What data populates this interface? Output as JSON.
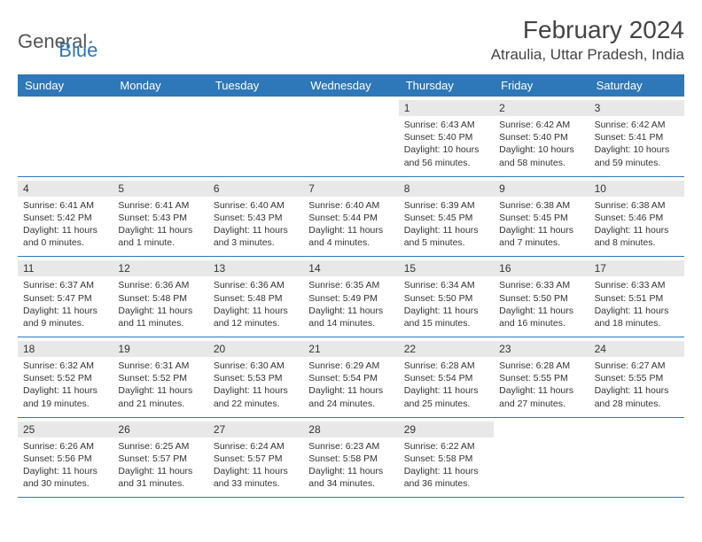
{
  "logo": {
    "text1": "General",
    "text2": "Blue"
  },
  "title": "February 2024",
  "location": "Atraulia, Uttar Pradesh, India",
  "colors": {
    "header_bg": "#2e77b8",
    "header_text": "#ffffff",
    "daynum_bg": "#e8e8e8",
    "border": "#2e77b8",
    "text": "#333333",
    "background": "#ffffff"
  },
  "typography": {
    "title_fontsize": 28,
    "location_fontsize": 17,
    "header_fontsize": 13,
    "daynum_fontsize": 12,
    "detail_fontsize": 10.5
  },
  "weekdays": [
    "Sunday",
    "Monday",
    "Tuesday",
    "Wednesday",
    "Thursday",
    "Friday",
    "Saturday"
  ],
  "weeks": [
    [
      null,
      null,
      null,
      null,
      {
        "n": "1",
        "l1": "Sunrise: 6:43 AM",
        "l2": "Sunset: 5:40 PM",
        "l3": "Daylight: 10 hours",
        "l4": "and 56 minutes."
      },
      {
        "n": "2",
        "l1": "Sunrise: 6:42 AM",
        "l2": "Sunset: 5:40 PM",
        "l3": "Daylight: 10 hours",
        "l4": "and 58 minutes."
      },
      {
        "n": "3",
        "l1": "Sunrise: 6:42 AM",
        "l2": "Sunset: 5:41 PM",
        "l3": "Daylight: 10 hours",
        "l4": "and 59 minutes."
      }
    ],
    [
      {
        "n": "4",
        "l1": "Sunrise: 6:41 AM",
        "l2": "Sunset: 5:42 PM",
        "l3": "Daylight: 11 hours",
        "l4": "and 0 minutes."
      },
      {
        "n": "5",
        "l1": "Sunrise: 6:41 AM",
        "l2": "Sunset: 5:43 PM",
        "l3": "Daylight: 11 hours",
        "l4": "and 1 minute."
      },
      {
        "n": "6",
        "l1": "Sunrise: 6:40 AM",
        "l2": "Sunset: 5:43 PM",
        "l3": "Daylight: 11 hours",
        "l4": "and 3 minutes."
      },
      {
        "n": "7",
        "l1": "Sunrise: 6:40 AM",
        "l2": "Sunset: 5:44 PM",
        "l3": "Daylight: 11 hours",
        "l4": "and 4 minutes."
      },
      {
        "n": "8",
        "l1": "Sunrise: 6:39 AM",
        "l2": "Sunset: 5:45 PM",
        "l3": "Daylight: 11 hours",
        "l4": "and 5 minutes."
      },
      {
        "n": "9",
        "l1": "Sunrise: 6:38 AM",
        "l2": "Sunset: 5:45 PM",
        "l3": "Daylight: 11 hours",
        "l4": "and 7 minutes."
      },
      {
        "n": "10",
        "l1": "Sunrise: 6:38 AM",
        "l2": "Sunset: 5:46 PM",
        "l3": "Daylight: 11 hours",
        "l4": "and 8 minutes."
      }
    ],
    [
      {
        "n": "11",
        "l1": "Sunrise: 6:37 AM",
        "l2": "Sunset: 5:47 PM",
        "l3": "Daylight: 11 hours",
        "l4": "and 9 minutes."
      },
      {
        "n": "12",
        "l1": "Sunrise: 6:36 AM",
        "l2": "Sunset: 5:48 PM",
        "l3": "Daylight: 11 hours",
        "l4": "and 11 minutes."
      },
      {
        "n": "13",
        "l1": "Sunrise: 6:36 AM",
        "l2": "Sunset: 5:48 PM",
        "l3": "Daylight: 11 hours",
        "l4": "and 12 minutes."
      },
      {
        "n": "14",
        "l1": "Sunrise: 6:35 AM",
        "l2": "Sunset: 5:49 PM",
        "l3": "Daylight: 11 hours",
        "l4": "and 14 minutes."
      },
      {
        "n": "15",
        "l1": "Sunrise: 6:34 AM",
        "l2": "Sunset: 5:50 PM",
        "l3": "Daylight: 11 hours",
        "l4": "and 15 minutes."
      },
      {
        "n": "16",
        "l1": "Sunrise: 6:33 AM",
        "l2": "Sunset: 5:50 PM",
        "l3": "Daylight: 11 hours",
        "l4": "and 16 minutes."
      },
      {
        "n": "17",
        "l1": "Sunrise: 6:33 AM",
        "l2": "Sunset: 5:51 PM",
        "l3": "Daylight: 11 hours",
        "l4": "and 18 minutes."
      }
    ],
    [
      {
        "n": "18",
        "l1": "Sunrise: 6:32 AM",
        "l2": "Sunset: 5:52 PM",
        "l3": "Daylight: 11 hours",
        "l4": "and 19 minutes."
      },
      {
        "n": "19",
        "l1": "Sunrise: 6:31 AM",
        "l2": "Sunset: 5:52 PM",
        "l3": "Daylight: 11 hours",
        "l4": "and 21 minutes."
      },
      {
        "n": "20",
        "l1": "Sunrise: 6:30 AM",
        "l2": "Sunset: 5:53 PM",
        "l3": "Daylight: 11 hours",
        "l4": "and 22 minutes."
      },
      {
        "n": "21",
        "l1": "Sunrise: 6:29 AM",
        "l2": "Sunset: 5:54 PM",
        "l3": "Daylight: 11 hours",
        "l4": "and 24 minutes."
      },
      {
        "n": "22",
        "l1": "Sunrise: 6:28 AM",
        "l2": "Sunset: 5:54 PM",
        "l3": "Daylight: 11 hours",
        "l4": "and 25 minutes."
      },
      {
        "n": "23",
        "l1": "Sunrise: 6:28 AM",
        "l2": "Sunset: 5:55 PM",
        "l3": "Daylight: 11 hours",
        "l4": "and 27 minutes."
      },
      {
        "n": "24",
        "l1": "Sunrise: 6:27 AM",
        "l2": "Sunset: 5:55 PM",
        "l3": "Daylight: 11 hours",
        "l4": "and 28 minutes."
      }
    ],
    [
      {
        "n": "25",
        "l1": "Sunrise: 6:26 AM",
        "l2": "Sunset: 5:56 PM",
        "l3": "Daylight: 11 hours",
        "l4": "and 30 minutes."
      },
      {
        "n": "26",
        "l1": "Sunrise: 6:25 AM",
        "l2": "Sunset: 5:57 PM",
        "l3": "Daylight: 11 hours",
        "l4": "and 31 minutes."
      },
      {
        "n": "27",
        "l1": "Sunrise: 6:24 AM",
        "l2": "Sunset: 5:57 PM",
        "l3": "Daylight: 11 hours",
        "l4": "and 33 minutes."
      },
      {
        "n": "28",
        "l1": "Sunrise: 6:23 AM",
        "l2": "Sunset: 5:58 PM",
        "l3": "Daylight: 11 hours",
        "l4": "and 34 minutes."
      },
      {
        "n": "29",
        "l1": "Sunrise: 6:22 AM",
        "l2": "Sunset: 5:58 PM",
        "l3": "Daylight: 11 hours",
        "l4": "and 36 minutes."
      },
      null,
      null
    ]
  ]
}
